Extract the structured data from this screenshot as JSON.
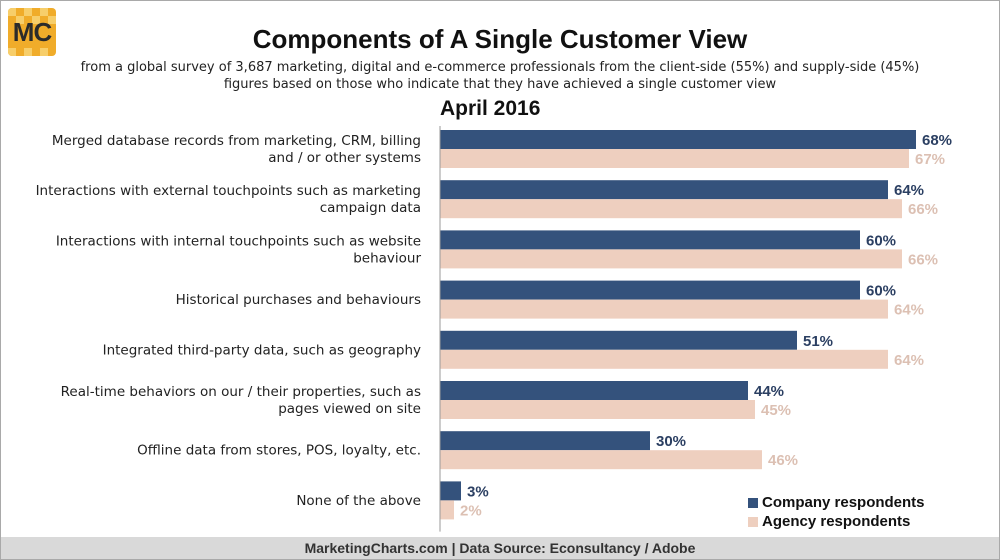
{
  "logo": {
    "text": "MC"
  },
  "title": "Components of A Single Customer View",
  "subtitle_line1": "from a global survey of 3,687 marketing, digital and e-commerce professionals from the client-side (55%) and supply-side (45%)",
  "subtitle_line2": "figures based on those who indicate that they have achieved a single customer view",
  "period": "April 2016",
  "footer": "MarketingCharts.com | Data Source: Econsultancy / Adobe",
  "chart_data": {
    "type": "bar",
    "orientation": "horizontal",
    "categories": [
      [
        "Merged database records from marketing, CRM, billing",
        "and / or other systems"
      ],
      [
        "Interactions with external touchpoints such as marketing",
        "campaign data"
      ],
      [
        "Interactions with internal touchpoints such as website",
        "behaviour"
      ],
      [
        "Historical purchases and behaviours"
      ],
      [
        "Integrated third-party data, such as geography"
      ],
      [
        "Real-time behaviors on our / their properties, such as",
        "pages viewed on site"
      ],
      [
        "Offline data from stores, POS, loyalty, etc."
      ],
      [
        "None of the above"
      ]
    ],
    "series": [
      {
        "name": "Company respondents",
        "color": "#34527c",
        "label_color": "#2b3f62",
        "values": [
          68,
          64,
          60,
          60,
          51,
          44,
          30,
          3
        ]
      },
      {
        "name": "Agency respondents",
        "color": "#eecfbf",
        "label_color": "#dcc0b3",
        "values": [
          67,
          66,
          66,
          64,
          64,
          45,
          46,
          2
        ]
      }
    ],
    "value_suffix": "%",
    "xlim": [
      0,
      100
    ],
    "grid": false,
    "legend_position": "bottom-right"
  }
}
